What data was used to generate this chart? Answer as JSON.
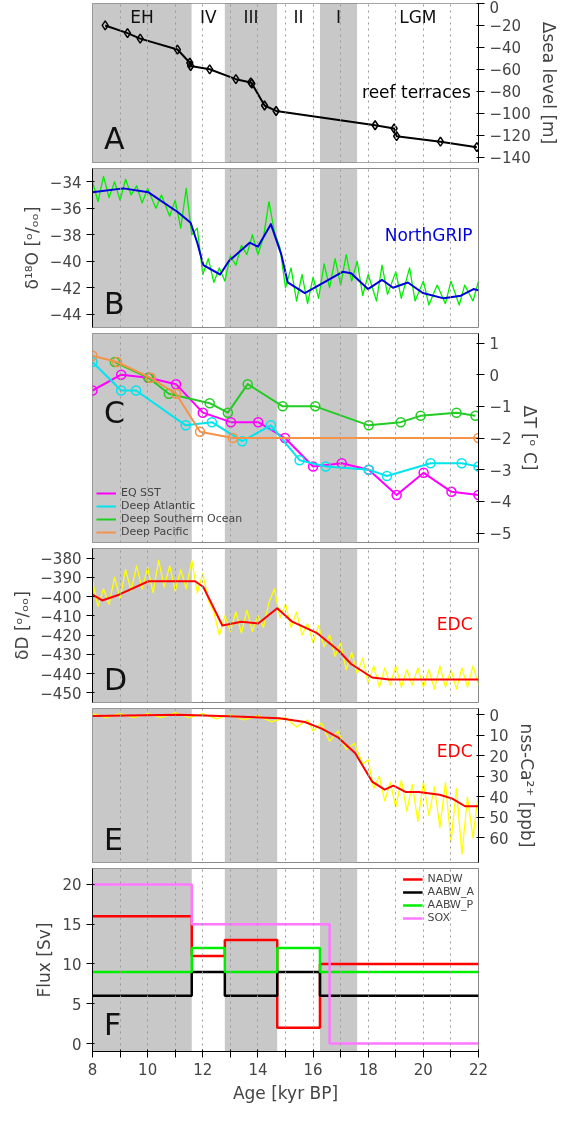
{
  "chart_data": [
    {
      "type": "line",
      "annotations": [
        "A"
      ],
      "y2label": "Δsea level [m]",
      "y2lim": [
        -145,
        0
      ],
      "y2ticks": [
        0,
        -20,
        -40,
        -60,
        -80,
        -100,
        -120,
        -140
      ],
      "xlim": [
        8,
        22
      ],
      "xticks": [
        8,
        {
          "value": 9,
          "label": null
        },
        10,
        {
          "value": 11,
          "label": null
        },
        12,
        {
          "value": 13,
          "label": null
        },
        14,
        {
          "value": 15,
          "label": null
        },
        16,
        {
          "value": 17,
          "label": null
        },
        18,
        {
          "value": 19,
          "label": null
        },
        20,
        {
          "value": 21,
          "label": null
        },
        22
      ],
      "tick_labels": "y",
      "grid": "x",
      "marker": "diamond",
      "bands": [
        {
          "axis": "x",
          "from": 8,
          "to": 11.6,
          "label": "EH",
          "color": "#c8c8c8"
        },
        {
          "axis": "x",
          "from": 11.6,
          "to": 12.8,
          "label": "IV",
          "color": "#ffffff"
        },
        {
          "axis": "x",
          "from": 12.8,
          "to": 14.7,
          "label": "III",
          "color": "#c8c8c8"
        },
        {
          "axis": "x",
          "from": 14.7,
          "to": 16.25,
          "label": "II",
          "color": "#ffffff"
        },
        {
          "axis": "x",
          "from": 16.25,
          "to": 17.6,
          "label": "I",
          "color": "#c8c8c8"
        },
        {
          "axis": "x",
          "from": 17.6,
          "to": 22,
          "label": "LGM",
          "color": "#ffffff"
        }
      ],
      "series": [
        {
          "name": "reef terraces",
          "color": "#000000",
          "axis": "y2",
          "x": [
            8.46,
            9.27,
            9.73,
            11.08,
            11.53,
            11.56,
            12.25,
            13.2,
            13.74,
            13.78,
            14.24,
            14.66,
            18.25,
            18.94,
            19.03,
            20.62,
            21.94
          ],
          "values": [
            -20,
            -27,
            -32,
            -42,
            -54,
            -57,
            -60,
            -69,
            -72,
            -73,
            -93,
            -98,
            -111,
            -114,
            -121,
            -126,
            -131
          ]
        }
      ]
    },
    {
      "type": "line",
      "annotations": [
        "B"
      ],
      "ylabel": "δ¹⁸O [ᵒ/ₒₒ]",
      "ylim": [
        -45,
        -33
      ],
      "yticks": [
        -34,
        -36,
        -38,
        -40,
        -42,
        -44
      ],
      "xlim": [
        8,
        22
      ],
      "xticks": [
        8,
        {
          "value": 9,
          "label": null
        },
        10,
        {
          "value": 11,
          "label": null
        },
        12,
        {
          "value": 13,
          "label": null
        },
        14,
        {
          "value": 15,
          "label": null
        },
        16,
        {
          "value": 17,
          "label": null
        },
        18,
        {
          "value": 19,
          "label": null
        },
        20,
        {
          "value": 21,
          "label": null
        },
        22
      ],
      "tick_labels": "y",
      "grid": "x",
      "bands": [
        {
          "axis": "x",
          "from": 8,
          "to": 11.6,
          "color": "#c8c8c8"
        },
        {
          "axis": "x",
          "from": 12.8,
          "to": 14.7,
          "color": "#c8c8c8"
        },
        {
          "axis": "x",
          "from": 16.25,
          "to": 17.6,
          "color": "#c8c8c8"
        }
      ],
      "series": [
        {
          "color": "#00ee00",
          "x": [
            8.0,
            8.2,
            8.4,
            8.6,
            8.8,
            9.0,
            9.2,
            9.4,
            9.6,
            9.8,
            10.0,
            10.3,
            10.5,
            10.8,
            11.0,
            11.2,
            11.4,
            11.6,
            11.8,
            12.0,
            12.2,
            12.4,
            12.6,
            12.8,
            13.0,
            13.2,
            13.4,
            13.6,
            13.8,
            14.0,
            14.2,
            14.4,
            14.6,
            14.8,
            15.0,
            15.2,
            15.4,
            15.6,
            15.8,
            16.0,
            16.2,
            16.4,
            16.6,
            16.8,
            17.0,
            17.2,
            17.4,
            17.6,
            17.8,
            18.0,
            18.3,
            18.5,
            18.7,
            19.0,
            19.2,
            19.5,
            19.7,
            20.0,
            20.2,
            20.5,
            20.8,
            21.0,
            21.3,
            21.5,
            21.8,
            22.0
          ],
          "values": [
            -34.0,
            -35.5,
            -33.6,
            -35.2,
            -34.0,
            -35.4,
            -33.8,
            -35.0,
            -34.3,
            -35.6,
            -34.5,
            -36.0,
            -35.0,
            -36.6,
            -35.4,
            -37.5,
            -34.5,
            -38.0,
            -37.5,
            -41.0,
            -39.8,
            -41.6,
            -40.5,
            -41.5,
            -39.6,
            -40.3,
            -38.8,
            -39.5,
            -38.0,
            -39.5,
            -38.2,
            -35.5,
            -37.8,
            -39.0,
            -42.0,
            -40.5,
            -43.0,
            -41.0,
            -43.2,
            -41.2,
            -42.8,
            -40.2,
            -42.0,
            -39.8,
            -41.8,
            -39.5,
            -41.5,
            -40.0,
            -42.6,
            -41.0,
            -43.0,
            -40.3,
            -42.5,
            -40.8,
            -42.8,
            -40.5,
            -43.0,
            -41.5,
            -43.3,
            -41.8,
            -43.2,
            -41.5,
            -43.3,
            -41.8,
            -43.0,
            -41.5
          ]
        },
        {
          "name": "NorthGRIP",
          "color": "#0000dd",
          "x": [
            8.0,
            9.12,
            10.03,
            11.1,
            11.56,
            11.8,
            12.02,
            12.63,
            12.94,
            13.7,
            14.0,
            14.47,
            14.85,
            15.08,
            15.7,
            16.3,
            17.07,
            17.38,
            17.99,
            18.5,
            18.9,
            19.44,
            19.98,
            20.74,
            21.36,
            21.82,
            22.0
          ],
          "values": [
            -34.8,
            -34.5,
            -34.8,
            -36.3,
            -37.1,
            -38.6,
            -40.3,
            -41.0,
            -40.0,
            -38.6,
            -38.9,
            -37.2,
            -39.5,
            -41.6,
            -42.4,
            -41.7,
            -40.8,
            -40.9,
            -42.1,
            -41.4,
            -42.0,
            -41.6,
            -42.4,
            -42.8,
            -42.6,
            -42.1,
            -42.2
          ]
        }
      ]
    },
    {
      "type": "line",
      "annotations": [
        "C"
      ],
      "y2label": "ΔT [ᵒ C]",
      "y2lim": [
        -5.3,
        1.3
      ],
      "y2ticks": [
        1,
        0,
        -1,
        -2,
        -3,
        -4,
        -5
      ],
      "xlim": [
        8,
        22
      ],
      "xticks": [
        8,
        {
          "value": 9,
          "label": null
        },
        10,
        {
          "value": 11,
          "label": null
        },
        12,
        {
          "value": 13,
          "label": null
        },
        14,
        {
          "value": 15,
          "label": null
        },
        16,
        {
          "value": 17,
          "label": null
        },
        18,
        {
          "value": 19,
          "label": null
        },
        20,
        {
          "value": 21,
          "label": null
        },
        22
      ],
      "tick_labels": "y",
      "grid": "x",
      "marker": "circle",
      "legend": "bottom left",
      "bands": [
        {
          "axis": "x",
          "from": 8,
          "to": 11.6,
          "color": "#c8c8c8"
        },
        {
          "axis": "x",
          "from": 12.8,
          "to": 14.7,
          "color": "#c8c8c8"
        },
        {
          "axis": "x",
          "from": 16.25,
          "to": 17.6,
          "color": "#c8c8c8"
        }
      ],
      "series": [
        {
          "name": "EQ SST",
          "color": "#ff00ff",
          "axis": "y2",
          "x": [
            8.0,
            9.04,
            10.03,
            11.03,
            12.0,
            13.02,
            14.01,
            14.98,
            16.0,
            17.04,
            18.02,
            19.03,
            20.01,
            21.02,
            22.0
          ],
          "values": [
            -0.5,
            0.0,
            -0.1,
            -0.3,
            -1.2,
            -1.5,
            -1.5,
            -2.0,
            -2.9,
            -2.8,
            -3.0,
            -3.8,
            -3.1,
            -3.7,
            -3.8
          ]
        },
        {
          "name": "Deep Atlantic",
          "color": "#00e5ee",
          "axis": "y2",
          "x": [
            8.0,
            9.04,
            9.58,
            11.38,
            12.33,
            13.43,
            14.47,
            15.51,
            16.46,
            18.02,
            18.68,
            20.26,
            21.39,
            22.0
          ],
          "values": [
            0.4,
            -0.5,
            -0.5,
            -1.6,
            -1.5,
            -2.1,
            -1.6,
            -2.7,
            -2.9,
            -3.0,
            -3.2,
            -2.8,
            -2.8,
            -2.9
          ]
        },
        {
          "name": "Deep Southern Ocean",
          "color": "#22cc22",
          "axis": "y2",
          "x": [
            8.81,
            10.03,
            10.77,
            12.25,
            12.91,
            13.63,
            14.9,
            16.08,
            18.02,
            19.18,
            19.9,
            21.2,
            21.89
          ],
          "values": [
            0.4,
            -0.1,
            -0.6,
            -0.9,
            -1.2,
            -0.3,
            -1.0,
            -1.0,
            -1.6,
            -1.5,
            -1.3,
            -1.2,
            -1.3
          ]
        },
        {
          "name": "Deep Pacific",
          "color": "#f5934a",
          "axis": "y2",
          "x": [
            8.0,
            8.89,
            10.11,
            11.03,
            11.9,
            13.09,
            22.0
          ],
          "values": [
            0.6,
            0.4,
            -0.1,
            -0.6,
            -1.8,
            -2.0,
            -2.0
          ]
        }
      ]
    },
    {
      "type": "line",
      "annotations": [
        "D"
      ],
      "ylabel": "δD [ᵒ/ₒₒ]",
      "ylim": [
        -455,
        -375
      ],
      "yticks": [
        -380,
        -390,
        -400,
        -410,
        -420,
        -430,
        -440,
        -450
      ],
      "xlim": [
        8,
        22
      ],
      "xticks": [
        8,
        {
          "value": 9,
          "label": null
        },
        10,
        {
          "value": 11,
          "label": null
        },
        12,
        {
          "value": 13,
          "label": null
        },
        14,
        {
          "value": 15,
          "label": null
        },
        16,
        {
          "value": 17,
          "label": null
        },
        18,
        {
          "value": 19,
          "label": null
        },
        20,
        {
          "value": 21,
          "label": null
        },
        22
      ],
      "tick_labels": "y",
      "grid": "x",
      "bands": [
        {
          "axis": "x",
          "from": 8,
          "to": 11.6,
          "color": "#c8c8c8"
        },
        {
          "axis": "x",
          "from": 12.8,
          "to": 14.7,
          "color": "#c8c8c8"
        },
        {
          "axis": "x",
          "from": 16.25,
          "to": 17.6,
          "color": "#c8c8c8"
        }
      ],
      "series": [
        {
          "color": "#ffff00",
          "x": [
            8.0,
            8.2,
            8.4,
            8.6,
            8.8,
            9.0,
            9.2,
            9.4,
            9.6,
            9.8,
            10.0,
            10.2,
            10.4,
            10.6,
            10.8,
            11.0,
            11.2,
            11.4,
            11.6,
            11.8,
            12.0,
            12.2,
            12.4,
            12.6,
            12.8,
            13.0,
            13.2,
            13.4,
            13.6,
            13.8,
            14.0,
            14.2,
            14.4,
            14.6,
            14.8,
            15.0,
            15.2,
            15.4,
            15.6,
            15.8,
            16.0,
            16.2,
            16.4,
            16.6,
            16.8,
            17.0,
            17.2,
            17.4,
            17.6,
            17.8,
            18.0,
            18.2,
            18.4,
            18.6,
            18.8,
            19.0,
            19.2,
            19.4,
            19.6,
            19.8,
            20.0,
            20.2,
            20.4,
            20.6,
            20.8,
            21.0,
            21.2,
            21.4,
            21.6,
            21.8,
            22.0
          ],
          "values": [
            -392,
            -405,
            -396,
            -404,
            -390,
            -401,
            -386,
            -397,
            -384,
            -396,
            -385,
            -398,
            -381,
            -395,
            -384,
            -397,
            -386,
            -396,
            -381,
            -398,
            -388,
            -402,
            -408,
            -420,
            -410,
            -418,
            -408,
            -419,
            -407,
            -418,
            -410,
            -416,
            -403,
            -396,
            -411,
            -404,
            -416,
            -408,
            -420,
            -414,
            -424,
            -415,
            -426,
            -420,
            -431,
            -424,
            -438,
            -429,
            -440,
            -432,
            -445,
            -436,
            -447,
            -437,
            -446,
            -436,
            -447,
            -438,
            -446,
            -437,
            -447,
            -438,
            -448,
            -436,
            -447,
            -438,
            -448,
            -437,
            -447,
            -436,
            -446
          ]
        },
        {
          "name": "EDC",
          "color": "#ff0000",
          "x": [
            8.0,
            8.35,
            8.96,
            10.03,
            10.8,
            11.72,
            12.02,
            12.71,
            13.4,
            14.01,
            14.7,
            15.24,
            16.15,
            16.92,
            17.38,
            18.14,
            18.76,
            20.29,
            22.0
          ],
          "values": [
            -399,
            -402,
            -399,
            -392,
            -392,
            -392,
            -395,
            -415,
            -413,
            -414,
            -406,
            -413,
            -419,
            -428,
            -435,
            -442,
            -443,
            -443,
            -443
          ]
        }
      ]
    },
    {
      "type": "line",
      "annotations": [
        "E"
      ],
      "y2label": "nss-Ca²⁺ [ppb]",
      "y2lim": [
        72,
        -3
      ],
      "y2ticks": [
        0,
        10,
        20,
        30,
        40,
        50,
        60
      ],
      "xlim": [
        8,
        22
      ],
      "xticks": [
        8,
        {
          "value": 9,
          "label": null
        },
        10,
        {
          "value": 11,
          "label": null
        },
        12,
        {
          "value": 13,
          "label": null
        },
        14,
        {
          "value": 15,
          "label": null
        },
        16,
        {
          "value": 17,
          "label": null
        },
        18,
        {
          "value": 19,
          "label": null
        },
        20,
        {
          "value": 21,
          "label": null
        },
        22
      ],
      "tick_labels": "y",
      "grid": "x",
      "bands": [
        {
          "axis": "x",
          "from": 8,
          "to": 11.6,
          "color": "#c8c8c8"
        },
        {
          "axis": "x",
          "from": 12.8,
          "to": 14.7,
          "color": "#c8c8c8"
        },
        {
          "axis": "x",
          "from": 16.25,
          "to": 17.6,
          "color": "#c8c8c8"
        }
      ],
      "series": [
        {
          "color": "#ffff00",
          "axis": "y2",
          "x": [
            8.0,
            8.5,
            9.0,
            9.5,
            10.0,
            10.5,
            11.0,
            11.5,
            12.0,
            12.5,
            13.0,
            13.5,
            14.0,
            14.5,
            15.0,
            15.4,
            15.8,
            16.0,
            16.3,
            16.6,
            16.9,
            17.2,
            17.5,
            17.8,
            18.0,
            18.2,
            18.4,
            18.6,
            18.8,
            19.0,
            19.2,
            19.4,
            19.6,
            19.8,
            20.0,
            20.2,
            20.4,
            20.6,
            20.8,
            21.0,
            21.2,
            21.4,
            21.6,
            21.8,
            22.0
          ],
          "values": [
            -0.5,
            1.5,
            -0.5,
            1.5,
            -0.5,
            1.5,
            -1,
            1.5,
            -0.5,
            2,
            0,
            2.5,
            0.5,
            3.5,
            1.5,
            6,
            2.5,
            8,
            4,
            13,
            8,
            17,
            14,
            24,
            22,
            36,
            30,
            42,
            33,
            45,
            32,
            47,
            34,
            52,
            33,
            49,
            35,
            55,
            33,
            62,
            36,
            68,
            40,
            60,
            38
          ]
        },
        {
          "name": "EDC",
          "color": "#ff0000",
          "axis": "y2",
          "x": [
            8.0,
            11.1,
            12.94,
            14.78,
            15.7,
            16.31,
            16.92,
            17.53,
            18.14,
            18.6,
            18.91,
            19.37,
            19.83,
            20.59,
            21.05,
            21.51,
            22.0
          ],
          "values": [
            0.6,
            0,
            0.8,
            1.7,
            3.6,
            6.8,
            11.2,
            18.8,
            32.6,
            36.5,
            34.6,
            37.7,
            37.7,
            39.0,
            40.9,
            44.6,
            44.6
          ]
        }
      ]
    },
    {
      "type": "step",
      "annotations": [
        "F"
      ],
      "ylabel": "Flux [Sv]",
      "xlabel": "Age [kyr BP]",
      "ylim": [
        -1,
        22
      ],
      "yticks": [
        0,
        5,
        10,
        15,
        20
      ],
      "xlim": [
        8,
        22
      ],
      "xticks": [
        8,
        {
          "value": 9,
          "label": null
        },
        10,
        {
          "value": 11,
          "label": null
        },
        12,
        {
          "value": 13,
          "label": null
        },
        14,
        {
          "value": 15,
          "label": null
        },
        16,
        {
          "value": 17,
          "label": null
        },
        18,
        {
          "value": 19,
          "label": null
        },
        20,
        {
          "value": 21,
          "label": null
        },
        22
      ],
      "grid": "x",
      "legend": "top right",
      "bands": [
        {
          "axis": "x",
          "from": 8,
          "to": 11.6,
          "color": "#c8c8c8"
        },
        {
          "axis": "x",
          "from": 12.8,
          "to": 14.7,
          "color": "#c8c8c8"
        },
        {
          "axis": "x",
          "from": 16.25,
          "to": 17.6,
          "color": "#c8c8c8"
        }
      ],
      "series": [
        {
          "name": "NADW",
          "color": "#ff0000",
          "x": [
            8,
            11.6,
            12.8,
            14.7,
            16.25,
            22
          ],
          "values": [
            16,
            11,
            13,
            2,
            10,
            10
          ]
        },
        {
          "name": "AABW_A",
          "color": "#000000",
          "x": [
            8,
            11.6,
            12.8,
            14.7,
            16.25,
            22
          ],
          "values": [
            6,
            9,
            6,
            9,
            6,
            6
          ]
        },
        {
          "name": "AABW_P",
          "color": "#00ee00",
          "x": [
            8,
            11.6,
            12.8,
            14.7,
            16.25,
            22
          ],
          "values": [
            9,
            12,
            9,
            12,
            9,
            9
          ]
        },
        {
          "name": "SOX",
          "color": "#ff77ff",
          "x": [
            8,
            11.6,
            16.6,
            22
          ],
          "values": [
            20,
            15,
            0,
            0
          ]
        }
      ]
    }
  ]
}
